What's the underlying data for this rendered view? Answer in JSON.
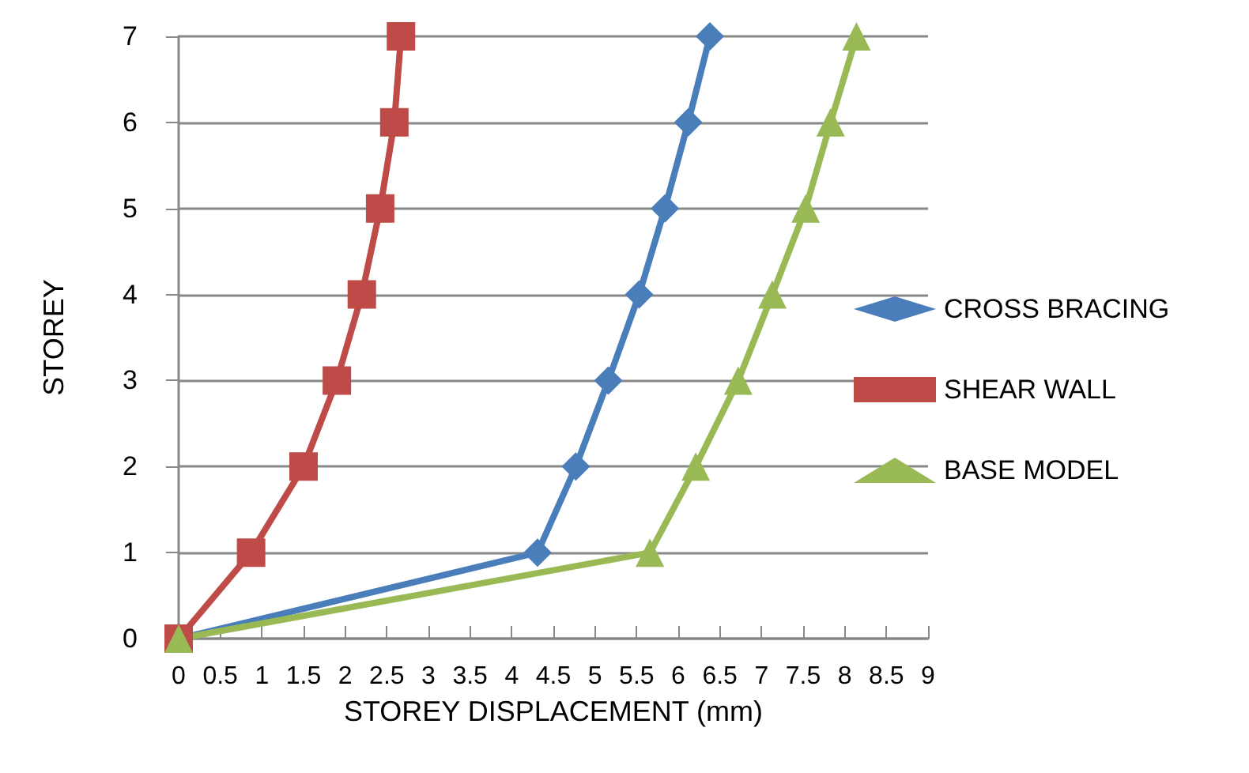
{
  "chart_data": {
    "type": "line",
    "xlabel": "STOREY DISPLACEMENT (mm)",
    "ylabel": "STOREY",
    "xlim": [
      0,
      9
    ],
    "xticks": [
      0,
      0.5,
      1,
      1.5,
      2,
      2.5,
      3,
      3.5,
      4,
      4.5,
      5,
      5.5,
      6,
      6.5,
      7,
      7.5,
      8,
      8.5,
      9
    ],
    "ylim": [
      0,
      7
    ],
    "yticks": [
      0,
      1,
      2,
      3,
      4,
      5,
      6,
      7
    ],
    "grid": "y",
    "legend": "right",
    "line_style": "solid",
    "series": [
      {
        "name": "CROSS BRACING",
        "color": "#4a7ebb",
        "marker": "diamond",
        "x": [
          0,
          4.31,
          4.77,
          5.16,
          5.53,
          5.84,
          6.12,
          6.38
        ],
        "values": [
          0,
          1,
          2,
          3,
          4,
          5,
          6,
          7
        ]
      },
      {
        "name": "SHEAR WALL",
        "color": "#be4b48",
        "marker": "square",
        "x": [
          0,
          0.87,
          1.5,
          1.9,
          2.2,
          2.42,
          2.59,
          2.67
        ],
        "values": [
          0,
          1,
          2,
          3,
          4,
          5,
          6,
          7
        ]
      },
      {
        "name": "BASE MODEL",
        "color": "#98b954",
        "marker": "triangle",
        "x": [
          0,
          5.66,
          6.21,
          6.72,
          7.13,
          7.53,
          7.83,
          8.14
        ],
        "values": [
          0,
          1,
          2,
          3,
          4,
          5,
          6,
          7
        ]
      }
    ]
  }
}
